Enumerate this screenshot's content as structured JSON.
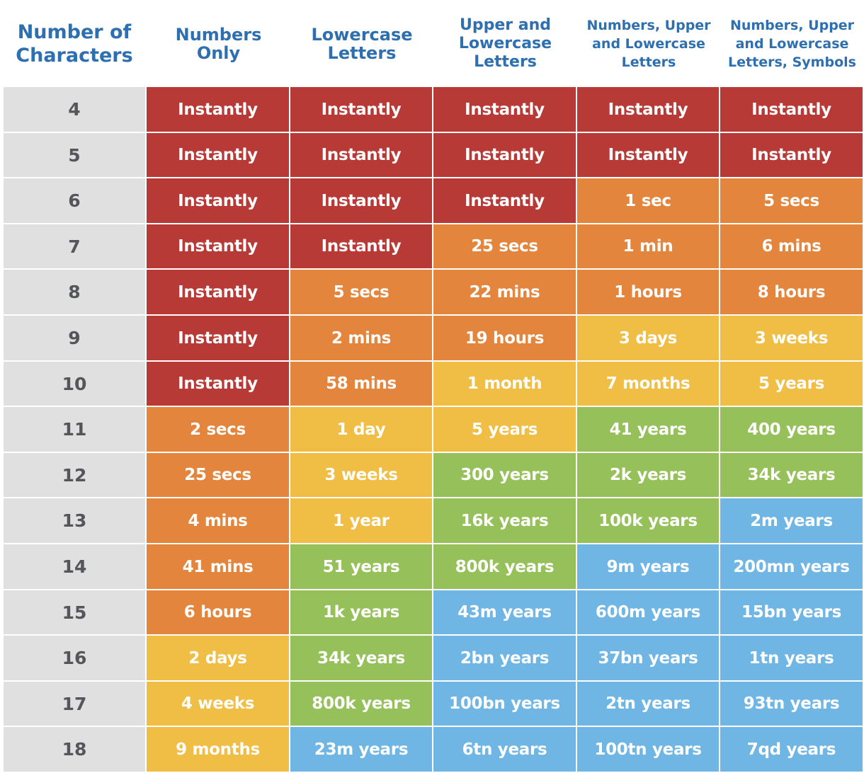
{
  "chart_data": {
    "type": "table",
    "columns": [
      "Number of\nCharacters",
      "Numbers\nOnly",
      "Lowercase\nLetters",
      "Upper and\nLowercase\nLetters",
      "Numbers, Upper\nand Lowercase\nLetters",
      "Numbers, Upper\nand Lowercase\nLetters, Symbols"
    ],
    "rows": [
      {
        "chars": "4",
        "cells": [
          {
            "t": "Instantly",
            "c": "red"
          },
          {
            "t": "Instantly",
            "c": "red"
          },
          {
            "t": "Instantly",
            "c": "red"
          },
          {
            "t": "Instantly",
            "c": "red"
          },
          {
            "t": "Instantly",
            "c": "red"
          }
        ]
      },
      {
        "chars": "5",
        "cells": [
          {
            "t": "Instantly",
            "c": "red"
          },
          {
            "t": "Instantly",
            "c": "red"
          },
          {
            "t": "Instantly",
            "c": "red"
          },
          {
            "t": "Instantly",
            "c": "red"
          },
          {
            "t": "Instantly",
            "c": "red"
          }
        ]
      },
      {
        "chars": "6",
        "cells": [
          {
            "t": "Instantly",
            "c": "red"
          },
          {
            "t": "Instantly",
            "c": "red"
          },
          {
            "t": "Instantly",
            "c": "red"
          },
          {
            "t": "1 sec",
            "c": "orange"
          },
          {
            "t": "5 secs",
            "c": "orange"
          }
        ]
      },
      {
        "chars": "7",
        "cells": [
          {
            "t": "Instantly",
            "c": "red"
          },
          {
            "t": "Instantly",
            "c": "red"
          },
          {
            "t": "25 secs",
            "c": "orange"
          },
          {
            "t": "1 min",
            "c": "orange"
          },
          {
            "t": "6 mins",
            "c": "orange"
          }
        ]
      },
      {
        "chars": "8",
        "cells": [
          {
            "t": "Instantly",
            "c": "red"
          },
          {
            "t": "5 secs",
            "c": "orange"
          },
          {
            "t": "22 mins",
            "c": "orange"
          },
          {
            "t": "1 hours",
            "c": "orange"
          },
          {
            "t": "8 hours",
            "c": "orange"
          }
        ]
      },
      {
        "chars": "9",
        "cells": [
          {
            "t": "Instantly",
            "c": "red"
          },
          {
            "t": "2 mins",
            "c": "orange"
          },
          {
            "t": "19 hours",
            "c": "orange"
          },
          {
            "t": "3 days",
            "c": "yellow"
          },
          {
            "t": "3 weeks",
            "c": "yellow"
          }
        ]
      },
      {
        "chars": "10",
        "cells": [
          {
            "t": "Instantly",
            "c": "red"
          },
          {
            "t": "58 mins",
            "c": "orange"
          },
          {
            "t": "1 month",
            "c": "yellow"
          },
          {
            "t": "7 months",
            "c": "yellow"
          },
          {
            "t": "5 years",
            "c": "yellow"
          }
        ]
      },
      {
        "chars": "11",
        "cells": [
          {
            "t": "2 secs",
            "c": "orange"
          },
          {
            "t": "1 day",
            "c": "yellow"
          },
          {
            "t": "5 years",
            "c": "yellow"
          },
          {
            "t": "41 years",
            "c": "green"
          },
          {
            "t": "400 years",
            "c": "green"
          }
        ]
      },
      {
        "chars": "12",
        "cells": [
          {
            "t": "25 secs",
            "c": "orange"
          },
          {
            "t": "3 weeks",
            "c": "yellow"
          },
          {
            "t": "300 years",
            "c": "green"
          },
          {
            "t": "2k years",
            "c": "green"
          },
          {
            "t": "34k years",
            "c": "green"
          }
        ]
      },
      {
        "chars": "13",
        "cells": [
          {
            "t": "4 mins",
            "c": "orange"
          },
          {
            "t": "1 year",
            "c": "yellow"
          },
          {
            "t": "16k years",
            "c": "green"
          },
          {
            "t": "100k years",
            "c": "green"
          },
          {
            "t": "2m years",
            "c": "blue"
          }
        ]
      },
      {
        "chars": "14",
        "cells": [
          {
            "t": "41 mins",
            "c": "orange"
          },
          {
            "t": "51 years",
            "c": "green"
          },
          {
            "t": "800k years",
            "c": "green"
          },
          {
            "t": "9m years",
            "c": "blue"
          },
          {
            "t": "200mn years",
            "c": "blue"
          }
        ]
      },
      {
        "chars": "15",
        "cells": [
          {
            "t": "6 hours",
            "c": "orange"
          },
          {
            "t": "1k years",
            "c": "green"
          },
          {
            "t": "43m years",
            "c": "blue"
          },
          {
            "t": "600m years",
            "c": "blue"
          },
          {
            "t": "15bn years",
            "c": "blue"
          }
        ]
      },
      {
        "chars": "16",
        "cells": [
          {
            "t": "2 days",
            "c": "yellow"
          },
          {
            "t": "34k years",
            "c": "green"
          },
          {
            "t": "2bn years",
            "c": "blue"
          },
          {
            "t": "37bn years",
            "c": "blue"
          },
          {
            "t": "1tn years",
            "c": "blue"
          }
        ]
      },
      {
        "chars": "17",
        "cells": [
          {
            "t": "4 weeks",
            "c": "yellow"
          },
          {
            "t": "800k years",
            "c": "green"
          },
          {
            "t": "100bn years",
            "c": "blue"
          },
          {
            "t": "2tn years",
            "c": "blue"
          },
          {
            "t": "93tn years",
            "c": "blue"
          }
        ]
      },
      {
        "chars": "18",
        "cells": [
          {
            "t": "9 months",
            "c": "yellow"
          },
          {
            "t": "23m years",
            "c": "blue"
          },
          {
            "t": "6tn years",
            "c": "blue"
          },
          {
            "t": "100tn years",
            "c": "blue"
          },
          {
            "t": "7qd years",
            "c": "blue"
          }
        ]
      }
    ]
  },
  "colors": {
    "red": "#b83a37",
    "orange": "#e3853c",
    "yellow": "#f0bd45",
    "green": "#95c05a",
    "blue": "#6fb6e4",
    "header_text": "#2e6fb0",
    "row_label_bg": "#e0e0e1",
    "row_label_text": "#555659"
  }
}
